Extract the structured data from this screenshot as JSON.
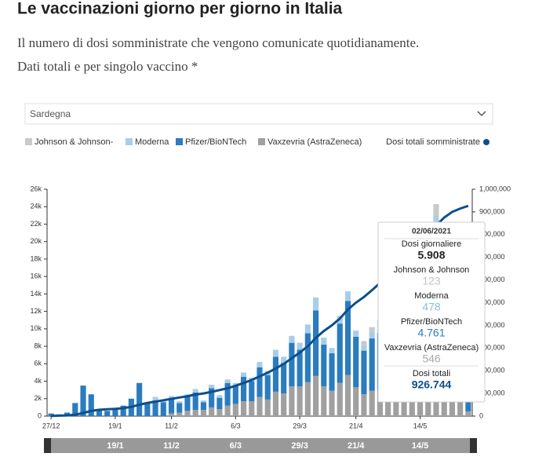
{
  "header": {
    "title": "Le vaccinazioni giorno per giorno in Italia",
    "subtitle_lines": [
      "Il numero di dosi somministrate che vengono comunicate quotidianamente.",
      "Dati totali e per singolo vaccino *"
    ],
    "region_select": "Sardegna"
  },
  "chart_data": {
    "type": "bar",
    "stacked": true,
    "categories": [
      "27/12",
      null,
      null,
      null,
      null,
      null,
      null,
      null,
      "19/1",
      null,
      null,
      null,
      null,
      null,
      null,
      "11/2",
      null,
      null,
      null,
      null,
      null,
      null,
      null,
      "6/3",
      null,
      null,
      null,
      null,
      null,
      null,
      null,
      "29/3",
      null,
      null,
      null,
      null,
      null,
      null,
      "21/4",
      null,
      null,
      null,
      null,
      null,
      null,
      null,
      "14/5",
      null,
      null,
      null,
      null,
      null,
      null
    ],
    "series": [
      {
        "name": "Johnson & Johnson-",
        "color": "#c9c9c9",
        "values": [
          0,
          0,
          0,
          0,
          0,
          0,
          0,
          0,
          0,
          0,
          0,
          0,
          0,
          0,
          0,
          0,
          0,
          0,
          0,
          0,
          0,
          0,
          0,
          0,
          0,
          0,
          0,
          0,
          0,
          0,
          0,
          0,
          0,
          0,
          0,
          0,
          0,
          0,
          0,
          500,
          500,
          600,
          700,
          800,
          800,
          900,
          800,
          800,
          1300,
          1000,
          1000,
          800,
          123
        ]
      },
      {
        "name": "Moderna",
        "color": "#a8cdea",
        "values": [
          0,
          0,
          0,
          0,
          0,
          0,
          0,
          0,
          0,
          0,
          0,
          0,
          0,
          400,
          300,
          300,
          200,
          300,
          400,
          200,
          400,
          300,
          400,
          300,
          500,
          400,
          600,
          500,
          800,
          700,
          800,
          800,
          1000,
          1500,
          800,
          600,
          900,
          1100,
          700,
          600,
          800,
          900,
          1000,
          1100,
          900,
          1000,
          800,
          900,
          2500,
          1300,
          1100,
          900,
          478
        ]
      },
      {
        "name": "Pfizer/BioNTech",
        "color": "#2b7cbf",
        "values": [
          300,
          200,
          400,
          1500,
          3500,
          2500,
          800,
          600,
          900,
          1200,
          2000,
          3800,
          1500,
          1800,
          1600,
          1700,
          1100,
          1600,
          2000,
          900,
          2200,
          1300,
          2600,
          2100,
          2800,
          2300,
          3400,
          2800,
          4000,
          3500,
          5000,
          4200,
          5600,
          7500,
          4800,
          4300,
          6800,
          8500,
          5800,
          5000,
          6000,
          6500,
          7500,
          7800,
          6800,
          7200,
          5500,
          6000,
          15000,
          8200,
          7000,
          5500,
          4761
        ]
      },
      {
        "name": "Vaxzevria (AstraZeneca)",
        "color": "#a0a0a0",
        "values": [
          0,
          0,
          0,
          0,
          0,
          0,
          0,
          0,
          0,
          0,
          0,
          0,
          0,
          0,
          0,
          300,
          400,
          600,
          700,
          700,
          1000,
          800,
          1200,
          1400,
          1700,
          1700,
          2200,
          1900,
          2800,
          2600,
          3400,
          3400,
          3900,
          4600,
          3400,
          2900,
          3800,
          4700,
          3300,
          2500,
          2900,
          3000,
          3300,
          3500,
          3300,
          3500,
          2400,
          2700,
          5500,
          3500,
          2900,
          2300,
          546
        ]
      },
      {
        "name": "Dosi totali somministrate",
        "color": "#0d4f8b",
        "axis": "y2",
        "values": [
          1000,
          2000,
          3000,
          6000,
          14000,
          23000,
          28000,
          30000,
          32000,
          35000,
          41000,
          50000,
          58000,
          64000,
          70000,
          76000,
          82000,
          88000,
          95000,
          100000,
          107000,
          115000,
          123000,
          134000,
          146000,
          159000,
          175000,
          191000,
          210000,
          230000,
          255000,
          280000,
          308000,
          345000,
          375000,
          400000,
          430000,
          470000,
          500000,
          525000,
          555000,
          587000,
          622000,
          660000,
          695000,
          730000,
          760000,
          790000,
          840000,
          875000,
          900000,
          915000,
          926744
        ]
      }
    ],
    "ylim": [
      0,
      26000
    ],
    "yticks": [
      0,
      {
        "value": 2000,
        "label": "2k"
      },
      {
        "value": 4000,
        "label": "4k"
      },
      {
        "value": 6000,
        "label": "6k"
      },
      {
        "value": 8000,
        "label": "8k"
      },
      {
        "value": 10000,
        "label": "10k"
      },
      {
        "value": 12000,
        "label": "12k"
      },
      {
        "value": 14000,
        "label": "14k"
      },
      {
        "value": 16000,
        "label": "16k"
      },
      {
        "value": 18000,
        "label": "18k"
      },
      {
        "value": 20000,
        "label": "20k"
      },
      {
        "value": 22000,
        "label": "22k"
      },
      {
        "value": 24000,
        "label": "24k"
      },
      {
        "value": 26000,
        "label": "26k"
      }
    ],
    "y2lim": [
      0,
      1000000
    ],
    "y2ticks": [
      0,
      {
        "value": 100000,
        "label": "100,000"
      },
      {
        "value": 200000,
        "label": "200,000"
      },
      {
        "value": 300000,
        "label": "300,000"
      },
      {
        "value": 400000,
        "label": "400,000"
      },
      {
        "value": 500000,
        "label": "500,000"
      },
      {
        "value": 600000,
        "label": "600,000"
      },
      {
        "value": 700000,
        "label": "700,000"
      },
      {
        "value": 800000,
        "label": "800,000"
      },
      {
        "value": 900000,
        "label": "900,000"
      },
      {
        "value": 1000000,
        "label": "1,000,000"
      }
    ],
    "grid": false
  },
  "tooltip": {
    "date": "02/06/2021",
    "rows": [
      {
        "label": "Dosi giornaliere",
        "value": "5.908"
      },
      {
        "label": "Johnson & Johnson",
        "value": "123"
      },
      {
        "label": "Moderna",
        "value": "478"
      },
      {
        "label": "Pfizer/BioNTech",
        "value": "4.761"
      },
      {
        "label": "Vaxzevria (AstraZeneca)",
        "value": "546"
      },
      {
        "label": "Dosi totali",
        "value": "926.744"
      }
    ]
  }
}
